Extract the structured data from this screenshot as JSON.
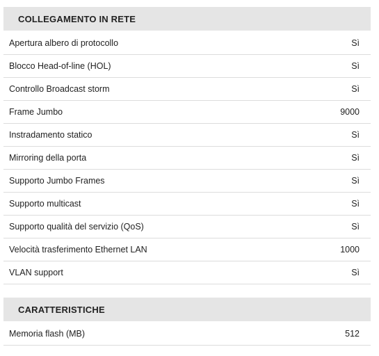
{
  "sections": [
    {
      "title": "COLLEGAMENTO IN RETE",
      "rows": [
        {
          "label": "Apertura albero di protocollo",
          "value": "Sì"
        },
        {
          "label": "Blocco Head-of-line (HOL)",
          "value": "Sì"
        },
        {
          "label": "Controllo Broadcast storm",
          "value": "Sì"
        },
        {
          "label": "Frame Jumbo",
          "value": "9000"
        },
        {
          "label": "Instradamento statico",
          "value": "Sì"
        },
        {
          "label": "Mirroring della porta",
          "value": "Sì"
        },
        {
          "label": "Supporto Jumbo Frames",
          "value": "Sì"
        },
        {
          "label": "Supporto multicast",
          "value": "Sì"
        },
        {
          "label": "Supporto qualità del servizio (QoS)",
          "value": "Sì"
        },
        {
          "label": "Velocità trasferimento Ethernet LAN",
          "value": "1000"
        },
        {
          "label": "VLAN support",
          "value": "Sì"
        }
      ]
    },
    {
      "title": "CARATTERISTICHE",
      "rows": [
        {
          "label": "Memoria flash (MB)",
          "value": "512"
        }
      ]
    }
  ]
}
